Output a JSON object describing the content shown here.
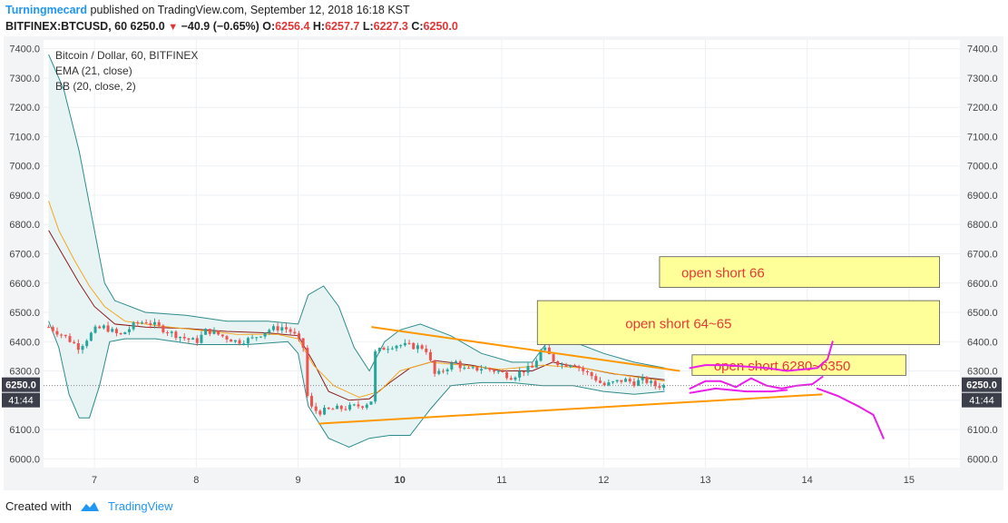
{
  "header": {
    "author": "Turningmecard",
    "published_text": "published on TradingView.com, September 12, 2018 16:18 KST",
    "symbol_line": "BITFINEX:BTCUSD, 60",
    "last": "6250.0",
    "change": "−40.9 (−0.65%)",
    "o_label": "O:",
    "o_value": "6256.4",
    "h_label": "H:",
    "h_value": "6257.7",
    "l_label": "L:",
    "l_value": "6227.3",
    "c_label": "C:",
    "c_value": "6250.0"
  },
  "legend": {
    "title": "Bitcoin / Dollar, 60, BITFINEX",
    "ema": "EMA (21, close)",
    "bb": "BB (20, close, 2)"
  },
  "footer": {
    "created_with": "Created with",
    "brand": "TradingView"
  },
  "price_tag": {
    "value": "6250.0",
    "countdown": "41:44"
  },
  "annotations": [
    {
      "text": "open short 66",
      "price_top": 6690,
      "price_bottom": 6585,
      "day_start": 12.55,
      "day_end": 15.3
    },
    {
      "text": "open short  64~65",
      "price_top": 6540,
      "price_bottom": 6390,
      "day_start": 11.35,
      "day_end": 15.3
    },
    {
      "text": "open short 6280~6350",
      "price_top": 6355,
      "price_bottom": 6285,
      "day_start": 12.87,
      "day_end": 14.97
    }
  ],
  "colors": {
    "up": "#26a69a",
    "down": "#ef5350",
    "ema": "#f5a623",
    "bb_basis": "#8b1a1a",
    "bb_band": "#2e8b8b",
    "bb_fill": "#e8f4f4",
    "trendline": "#ff9800",
    "note_bg": "#ffff99",
    "note_text": "#e53935",
    "drawing": "#e91ee9"
  },
  "chart_data": {
    "type": "candlestick",
    "symbol": "BITFINEX:BTCUSD",
    "interval": "60",
    "y_ticks": [
      6000,
      6100,
      6200,
      6300,
      6400,
      6500,
      6600,
      6700,
      6800,
      6900,
      7000,
      7100,
      7200,
      7300,
      7400
    ],
    "y_tick_labels": [
      "6000.0",
      "6100.0",
      "6200.0",
      "6300.0",
      "6400.0",
      "6500.0",
      "6600.0",
      "6700.0",
      "6800.0",
      "6900.0",
      "7000.0",
      "7100.0",
      "7200.0",
      "7300.0",
      "7400.0"
    ],
    "ylim": [
      5970,
      7430
    ],
    "x_ticks": [
      7,
      8,
      9,
      10,
      11,
      12,
      13,
      14,
      15
    ],
    "x_tick_labels": [
      "7",
      "8",
      "9",
      "10",
      "11",
      "12",
      "13",
      "14",
      "15"
    ],
    "x_bold": [
      10
    ],
    "xlim": [
      6.5,
      15.5
    ],
    "last_close": 6250.0,
    "price_path": [
      [
        6.55,
        6450
      ],
      [
        6.7,
        6420
      ],
      [
        6.85,
        6380
      ],
      [
        7.0,
        6440
      ],
      [
        7.1,
        6450
      ],
      [
        7.25,
        6420
      ],
      [
        7.4,
        6460
      ],
      [
        7.5,
        6470
      ],
      [
        7.6,
        6455
      ],
      [
        7.75,
        6430
      ],
      [
        7.9,
        6410
      ],
      [
        8.0,
        6400
      ],
      [
        8.1,
        6440
      ],
      [
        8.25,
        6420
      ],
      [
        8.4,
        6400
      ],
      [
        8.55,
        6410
      ],
      [
        8.7,
        6440
      ],
      [
        8.85,
        6450
      ],
      [
        8.95,
        6430
      ],
      [
        9.05,
        6380
      ],
      [
        9.1,
        6180
      ],
      [
        9.2,
        6160
      ],
      [
        9.35,
        6170
      ],
      [
        9.5,
        6175
      ],
      [
        9.65,
        6185
      ],
      [
        9.72,
        6200
      ],
      [
        9.75,
        6360
      ],
      [
        9.85,
        6380
      ],
      [
        9.95,
        6390
      ],
      [
        10.1,
        6385
      ],
      [
        10.25,
        6380
      ],
      [
        10.35,
        6280
      ],
      [
        10.45,
        6310
      ],
      [
        10.55,
        6330
      ],
      [
        10.65,
        6300
      ],
      [
        10.8,
        6310
      ],
      [
        10.95,
        6300
      ],
      [
        11.1,
        6280
      ],
      [
        11.2,
        6300
      ],
      [
        11.3,
        6310
      ],
      [
        11.4,
        6380
      ],
      [
        11.5,
        6340
      ],
      [
        11.6,
        6320
      ],
      [
        11.7,
        6330
      ],
      [
        11.8,
        6300
      ],
      [
        11.9,
        6280
      ],
      [
        12.0,
        6250
      ],
      [
        12.1,
        6260
      ],
      [
        12.2,
        6270
      ],
      [
        12.3,
        6260
      ],
      [
        12.4,
        6270
      ],
      [
        12.5,
        6250
      ],
      [
        12.6,
        6250
      ]
    ],
    "ema_path": [
      [
        6.55,
        6880
      ],
      [
        6.65,
        6780
      ],
      [
        6.8,
        6680
      ],
      [
        6.95,
        6590
      ],
      [
        7.1,
        6520
      ],
      [
        7.3,
        6470
      ],
      [
        7.6,
        6455
      ],
      [
        8.0,
        6440
      ],
      [
        8.4,
        6425
      ],
      [
        8.8,
        6425
      ],
      [
        9.0,
        6410
      ],
      [
        9.15,
        6320
      ],
      [
        9.35,
        6250
      ],
      [
        9.6,
        6210
      ],
      [
        9.8,
        6230
      ],
      [
        10.0,
        6300
      ],
      [
        10.3,
        6330
      ],
      [
        10.6,
        6320
      ],
      [
        11.0,
        6305
      ],
      [
        11.4,
        6320
      ],
      [
        11.8,
        6310
      ],
      [
        12.2,
        6285
      ],
      [
        12.6,
        6265
      ]
    ],
    "bb_upper": [
      [
        6.55,
        7380
      ],
      [
        6.7,
        7260
      ],
      [
        6.85,
        7050
      ],
      [
        7.0,
        6780
      ],
      [
        7.1,
        6600
      ],
      [
        7.2,
        6540
      ],
      [
        7.5,
        6500
      ],
      [
        7.9,
        6490
      ],
      [
        8.3,
        6470
      ],
      [
        8.7,
        6470
      ],
      [
        9.0,
        6460
      ],
      [
        9.1,
        6560
      ],
      [
        9.25,
        6590
      ],
      [
        9.4,
        6520
      ],
      [
        9.55,
        6380
      ],
      [
        9.7,
        6300
      ],
      [
        9.85,
        6400
      ],
      [
        10.0,
        6440
      ],
      [
        10.2,
        6460
      ],
      [
        10.5,
        6420
      ],
      [
        10.8,
        6360
      ],
      [
        11.1,
        6330
      ],
      [
        11.3,
        6330
      ],
      [
        11.45,
        6400
      ],
      [
        11.7,
        6400
      ],
      [
        12.0,
        6360
      ],
      [
        12.3,
        6330
      ],
      [
        12.6,
        6310
      ]
    ],
    "bb_basis": [
      [
        6.55,
        6780
      ],
      [
        6.7,
        6690
      ],
      [
        6.85,
        6600
      ],
      [
        7.0,
        6520
      ],
      [
        7.2,
        6460
      ],
      [
        7.5,
        6450
      ],
      [
        7.9,
        6445
      ],
      [
        8.3,
        6435
      ],
      [
        8.7,
        6430
      ],
      [
        9.0,
        6420
      ],
      [
        9.15,
        6330
      ],
      [
        9.3,
        6230
      ],
      [
        9.5,
        6200
      ],
      [
        9.7,
        6205
      ],
      [
        9.9,
        6260
      ],
      [
        10.1,
        6310
      ],
      [
        10.35,
        6335
      ],
      [
        10.7,
        6320
      ],
      [
        11.0,
        6300
      ],
      [
        11.3,
        6300
      ],
      [
        11.5,
        6330
      ],
      [
        11.8,
        6310
      ],
      [
        12.1,
        6290
      ],
      [
        12.6,
        6270
      ]
    ],
    "bb_lower": [
      [
        6.55,
        6470
      ],
      [
        6.65,
        6380
      ],
      [
        6.75,
        6220
      ],
      [
        6.85,
        6140
      ],
      [
        6.95,
        6140
      ],
      [
        7.05,
        6250
      ],
      [
        7.15,
        6400
      ],
      [
        7.3,
        6410
      ],
      [
        7.6,
        6410
      ],
      [
        8.0,
        6390
      ],
      [
        8.5,
        6390
      ],
      [
        8.9,
        6400
      ],
      [
        9.0,
        6360
      ],
      [
        9.1,
        6180
      ],
      [
        9.3,
        6070
      ],
      [
        9.5,
        6040
      ],
      [
        9.7,
        6070
      ],
      [
        9.9,
        6080
      ],
      [
        10.1,
        6080
      ],
      [
        10.3,
        6170
      ],
      [
        10.5,
        6250
      ],
      [
        10.8,
        6260
      ],
      [
        11.1,
        6260
      ],
      [
        11.4,
        6250
      ],
      [
        11.7,
        6250
      ],
      [
        12.0,
        6230
      ],
      [
        12.3,
        6220
      ],
      [
        12.6,
        6230
      ]
    ],
    "trendlines": [
      {
        "from": [
          9.72,
          6450
        ],
        "to": [
          12.75,
          6300
        ]
      },
      {
        "from": [
          9.2,
          6120
        ],
        "to": [
          14.15,
          6220
        ]
      }
    ],
    "drawing_paths": [
      [
        [
          12.85,
          6310
        ],
        [
          13.0,
          6320
        ],
        [
          13.2,
          6320
        ],
        [
          13.4,
          6315
        ],
        [
          13.6,
          6310
        ],
        [
          13.8,
          6300
        ],
        [
          13.95,
          6305
        ],
        [
          14.1,
          6310
        ],
        [
          14.2,
          6340
        ],
        [
          14.25,
          6400
        ]
      ],
      [
        [
          12.85,
          6240
        ],
        [
          13.0,
          6265
        ],
        [
          13.15,
          6265
        ],
        [
          13.3,
          6245
        ],
        [
          13.45,
          6275
        ],
        [
          13.6,
          6250
        ],
        [
          13.75,
          6240
        ],
        [
          13.9,
          6250
        ],
        [
          14.05,
          6255
        ],
        [
          14.15,
          6280
        ]
      ],
      [
        [
          12.85,
          6225
        ],
        [
          13.1,
          6240
        ],
        [
          13.4,
          6230
        ],
        [
          13.65,
          6230
        ],
        [
          13.8,
          6235
        ]
      ],
      [
        [
          14.1,
          6240
        ],
        [
          14.3,
          6215
        ],
        [
          14.5,
          6180
        ],
        [
          14.65,
          6150
        ],
        [
          14.75,
          6070
        ]
      ]
    ]
  }
}
